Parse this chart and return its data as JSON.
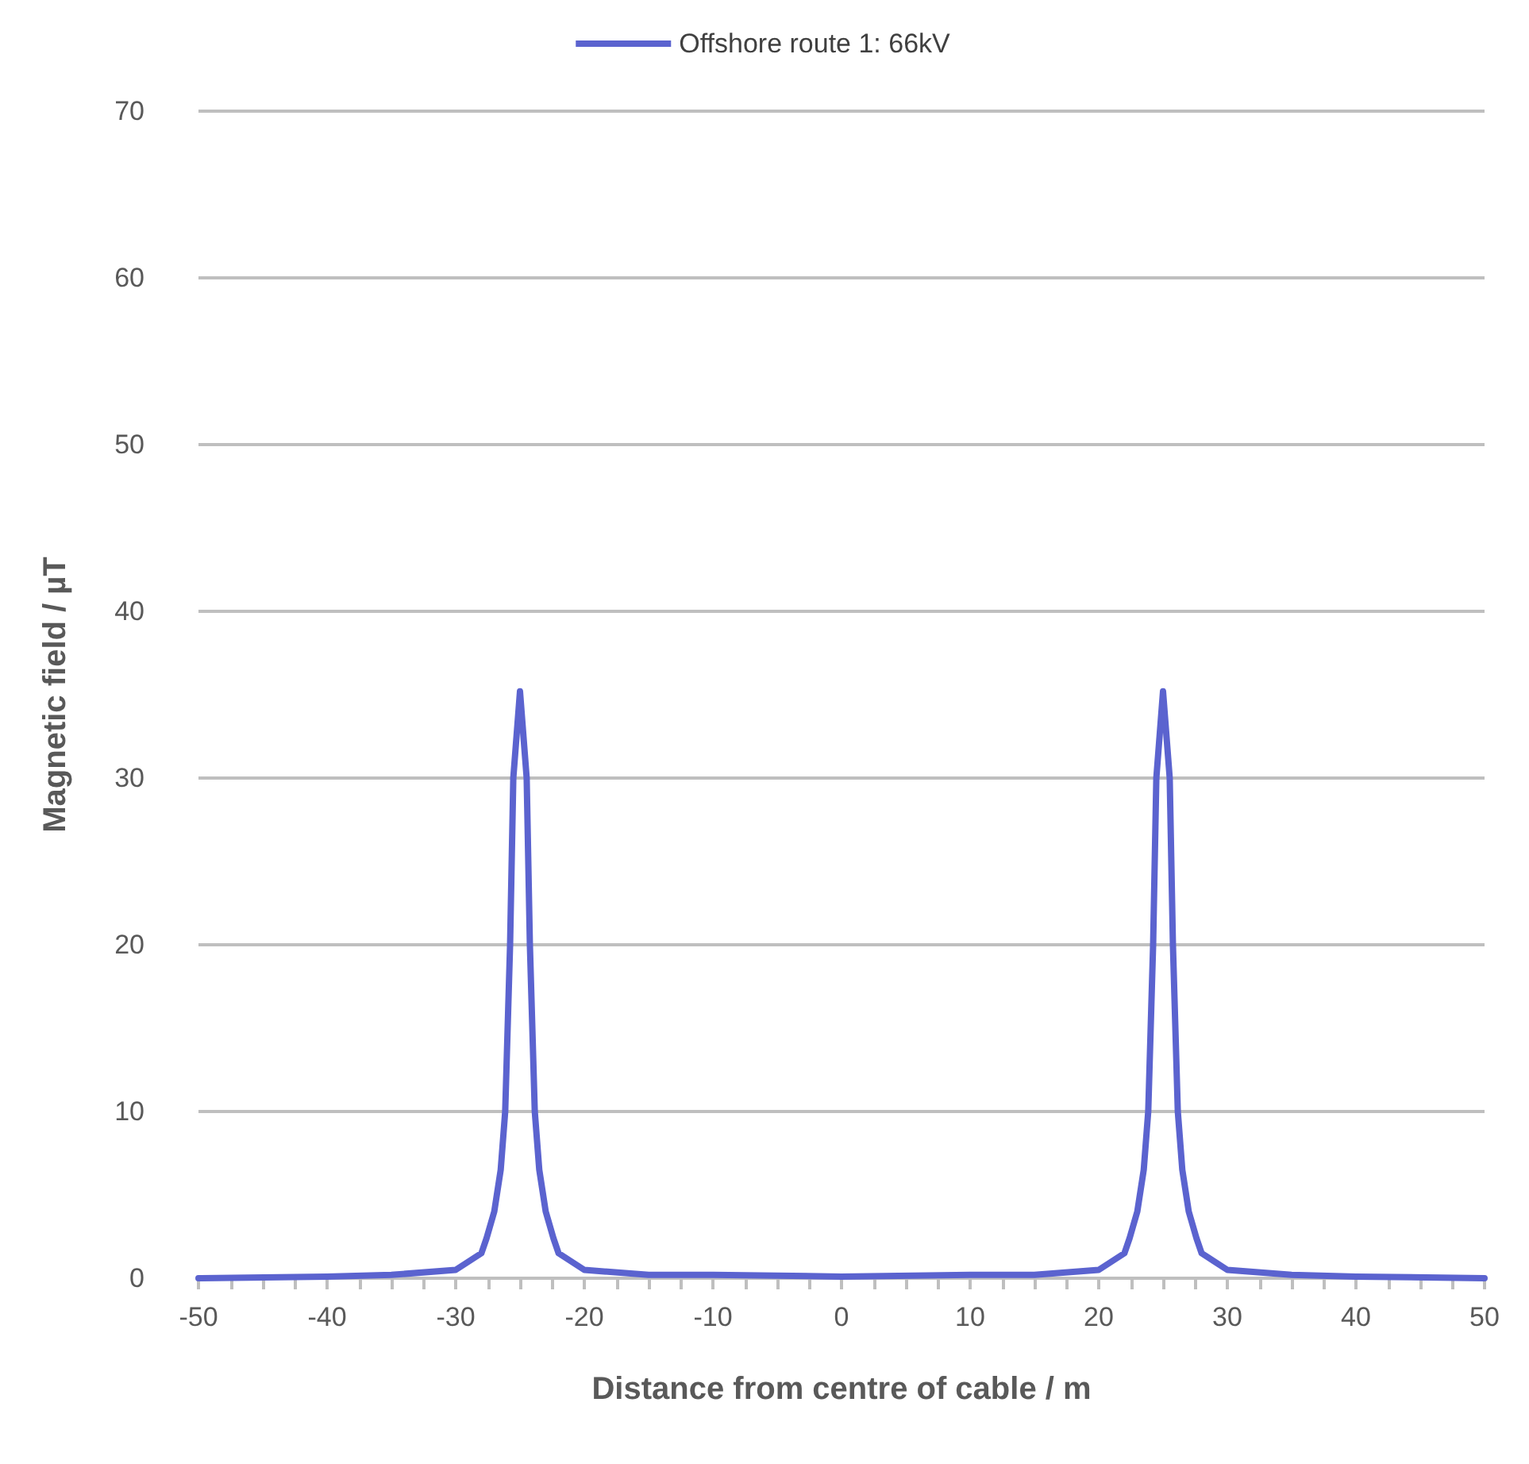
{
  "chart_data": {
    "type": "line",
    "xlabel": "Distance from centre of cable / m",
    "ylabel": "Magnetic field / µT",
    "series": [
      {
        "name": "Offshore route 1: 66kV",
        "color": "#5b63cf",
        "x": [
          -50,
          -40,
          -35,
          -30,
          -28,
          -27.6,
          -27,
          -26.5,
          -26.15,
          -25.77,
          -25.52,
          -25,
          -24.48,
          -24.23,
          -23.85,
          -23.5,
          -23,
          -22.4,
          -22,
          -20,
          -15,
          -10,
          0,
          10,
          15,
          20,
          22,
          22.4,
          23,
          23.5,
          23.85,
          24.23,
          24.48,
          25,
          25.52,
          25.77,
          26.15,
          26.5,
          27,
          27.6,
          28,
          30,
          35,
          40,
          50
        ],
        "values": [
          0,
          0.1,
          0.2,
          0.5,
          1.5,
          2.4,
          4,
          6.5,
          10,
          20,
          30,
          35.2,
          30,
          20,
          10,
          6.5,
          4,
          2.4,
          1.5,
          0.5,
          0.2,
          0.2,
          0.1,
          0.2,
          0.2,
          0.5,
          1.5,
          2.4,
          4,
          6.5,
          10,
          20,
          30,
          35.2,
          30,
          20,
          10,
          6.5,
          4,
          2.4,
          1.5,
          0.5,
          0.2,
          0.1,
          0
        ]
      }
    ],
    "xlim": [
      -50,
      50
    ],
    "ylim": [
      0,
      70
    ],
    "xticks": [
      -50,
      {
        "value": -47.5,
        "label": null
      },
      {
        "value": -45,
        "label": null
      },
      {
        "value": -42.5,
        "label": null
      },
      -40,
      {
        "value": -37.5,
        "label": null
      },
      {
        "value": -35,
        "label": null
      },
      {
        "value": -32.5,
        "label": null
      },
      -30,
      {
        "value": -27.5,
        "label": null
      },
      {
        "value": -25,
        "label": null
      },
      {
        "value": -22.5,
        "label": null
      },
      -20,
      {
        "value": -17.5,
        "label": null
      },
      {
        "value": -15,
        "label": null
      },
      {
        "value": -12.5,
        "label": null
      },
      -10,
      {
        "value": -7.5,
        "label": null
      },
      {
        "value": -5,
        "label": null
      },
      {
        "value": -2.5,
        "label": null
      },
      0,
      {
        "value": 2.5,
        "label": null
      },
      {
        "value": 5,
        "label": null
      },
      {
        "value": 7.5,
        "label": null
      },
      10,
      {
        "value": 12.5,
        "label": null
      },
      {
        "value": 15,
        "label": null
      },
      {
        "value": 17.5,
        "label": null
      },
      20,
      {
        "value": 22.5,
        "label": null
      },
      {
        "value": 25,
        "label": null
      },
      {
        "value": 27.5,
        "label": null
      },
      30,
      {
        "value": 32.5,
        "label": null
      },
      {
        "value": 35,
        "label": null
      },
      {
        "value": 37.5,
        "label": null
      },
      40,
      {
        "value": 42.5,
        "label": null
      },
      {
        "value": 45,
        "label": null
      },
      {
        "value": 47.5,
        "label": null
      },
      50
    ],
    "yticks": [
      0,
      10,
      20,
      30,
      40,
      50,
      60,
      70
    ],
    "grid": "y",
    "legend": "top",
    "marker": "none",
    "line_style": "solid"
  }
}
